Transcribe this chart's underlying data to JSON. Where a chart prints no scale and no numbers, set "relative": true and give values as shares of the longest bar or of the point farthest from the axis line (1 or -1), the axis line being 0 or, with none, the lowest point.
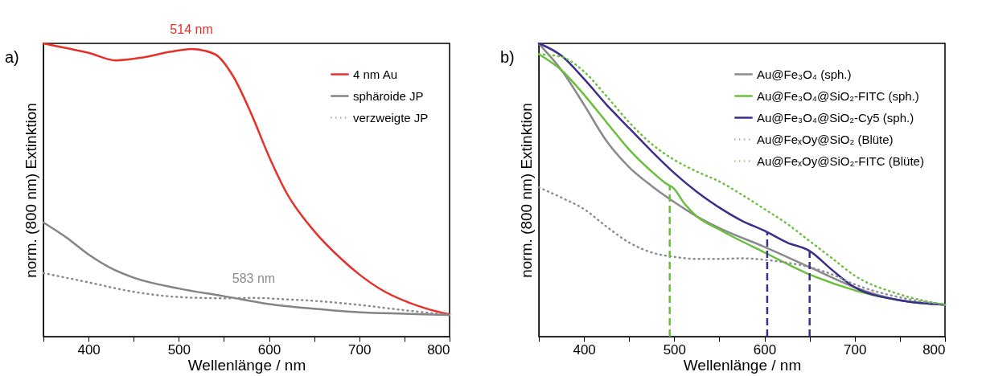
{
  "chart_data": [
    {
      "type": "line",
      "relative": true,
      "xlabel": "Wellenlänge / nm",
      "ylabel": "norm. (800 nm) Extinktion",
      "xlim": [
        350,
        800
      ],
      "xticks": [
        {
          "value": 350,
          "label": null
        },
        400,
        {
          "value": 450,
          "label": null
        },
        500,
        {
          "value": 550,
          "label": null
        },
        600,
        {
          "value": 650,
          "label": null
        },
        700,
        {
          "value": 750,
          "label": null
        },
        800
      ],
      "legend": "top right",
      "grid": false,
      "annotations": [
        "a)",
        {
          "text": "514 nm",
          "x": 514,
          "y": 0.981
        },
        {
          "text": "583 nm",
          "x": 583,
          "y": 0.132
        }
      ],
      "x": [
        350,
        375,
        400,
        430,
        460,
        490,
        514,
        540,
        560,
        580,
        600,
        620,
        650,
        680,
        700,
        725,
        750,
        775,
        800
      ],
      "series": [
        {
          "name": "4 nm Au",
          "color": "#e8302a",
          "line_style": "solid",
          "values": [
            1.0,
            0.984,
            0.968,
            0.942,
            0.952,
            0.971,
            0.981,
            0.963,
            0.889,
            0.762,
            0.614,
            0.487,
            0.36,
            0.265,
            0.212,
            0.159,
            0.122,
            0.095,
            0.076
          ]
        },
        {
          "name": "sphäroide JP",
          "color": "#848484",
          "line_style": "solid",
          "x": [
            350,
            375,
            400,
            425,
            450,
            500,
            550,
            600,
            650,
            700,
            750,
            800
          ],
          "values": [
            0.389,
            0.339,
            0.28,
            0.233,
            0.201,
            0.164,
            0.138,
            0.111,
            0.095,
            0.083,
            0.078,
            0.074
          ]
        },
        {
          "name": "verzweigte JP",
          "color": "#8c8c8c",
          "line_style": "dotted",
          "x": [
            350,
            400,
            450,
            500,
            550,
            583,
            620,
            650,
            700,
            750,
            800
          ],
          "values": [
            0.217,
            0.185,
            0.153,
            0.135,
            0.131,
            0.132,
            0.127,
            0.122,
            0.108,
            0.09,
            0.074
          ]
        }
      ]
    },
    {
      "type": "line",
      "relative": true,
      "xlabel": "Wellenlänge / nm",
      "ylabel": "norm. (800 nm) Extinktion",
      "xlim": [
        350,
        800
      ],
      "xticks": [
        {
          "value": 350,
          "label": null
        },
        400,
        {
          "value": 450,
          "label": null
        },
        500,
        {
          "value": 550,
          "label": null
        },
        600,
        {
          "value": 650,
          "label": null
        },
        700,
        {
          "value": 750,
          "label": null
        },
        800
      ],
      "legend": "top right",
      "grid": false,
      "annotations": [
        "b)"
      ],
      "ref_lines": [
        {
          "axis": "x",
          "value": 495,
          "color": "#6abf3c",
          "line_style": "dashed"
        },
        {
          "axis": "x",
          "value": 603,
          "color": "#3a2f8f",
          "line_style": "dashed"
        },
        {
          "axis": "x",
          "value": 650,
          "color": "#3a2f8f",
          "line_style": "dashed"
        }
      ],
      "x": [
        350,
        375,
        400,
        425,
        450,
        475,
        500,
        525,
        550,
        600,
        650,
        700,
        750,
        800
      ],
      "series": [
        {
          "name": "Au@Fe₃O₄ (sph.)",
          "color": "#8a8a8a",
          "line_style": "solid",
          "values": [
            0.998,
            0.909,
            0.791,
            0.667,
            0.578,
            0.514,
            0.459,
            0.41,
            0.37,
            0.306,
            0.237,
            0.168,
            0.124,
            0.109
          ]
        },
        {
          "name": "Au@Fe₃O₄@SiO₂-FITC (sph.)",
          "color": "#6abf3c",
          "line_style": "solid",
          "x": [
            350,
            375,
            400,
            425,
            450,
            475,
            490,
            500,
            510,
            525,
            550,
            600,
            650,
            700,
            750,
            800
          ],
          "values": [
            0.963,
            0.909,
            0.825,
            0.731,
            0.638,
            0.563,
            0.524,
            0.504,
            0.459,
            0.41,
            0.365,
            0.287,
            0.212,
            0.158,
            0.124,
            0.109
          ]
        },
        {
          "name": "Au@Fe₃O₄@SiO₂-Cy5 (sph.)",
          "color": "#3a2f8f",
          "line_style": "solid",
          "x": [
            350,
            375,
            400,
            425,
            450,
            475,
            500,
            525,
            550,
            575,
            600,
            625,
            650,
            675,
            700,
            750,
            800
          ],
          "values": [
            1.0,
            0.958,
            0.879,
            0.791,
            0.711,
            0.632,
            0.558,
            0.494,
            0.44,
            0.395,
            0.361,
            0.321,
            0.292,
            0.227,
            0.168,
            0.124,
            0.109
          ]
        },
        {
          "name": "Au@FeₓOy@SiO₂ (Blüte)",
          "color": "#8a8f99",
          "line_style": "dotted",
          "x": [
            350,
            375,
            400,
            425,
            450,
            475,
            500,
            525,
            550,
            575,
            600,
            625,
            650,
            675,
            700,
            750,
            800
          ],
          "values": [
            0.509,
            0.474,
            0.435,
            0.375,
            0.321,
            0.287,
            0.272,
            0.265,
            0.265,
            0.267,
            0.262,
            0.252,
            0.237,
            0.212,
            0.178,
            0.134,
            0.109
          ]
        },
        {
          "name": "Au@FeₓOy@SiO₂-FITC (Blüte)",
          "color": "#6abf3c",
          "line_style": "dotted",
          "x": [
            350,
            375,
            400,
            425,
            450,
            475,
            500,
            525,
            550,
            575,
            600,
            625,
            650,
            675,
            700,
            750,
            800
          ],
          "values": [
            0.963,
            0.954,
            0.904,
            0.82,
            0.731,
            0.657,
            0.603,
            0.563,
            0.529,
            0.484,
            0.435,
            0.385,
            0.326,
            0.267,
            0.208,
            0.144,
            0.109
          ]
        }
      ]
    }
  ]
}
